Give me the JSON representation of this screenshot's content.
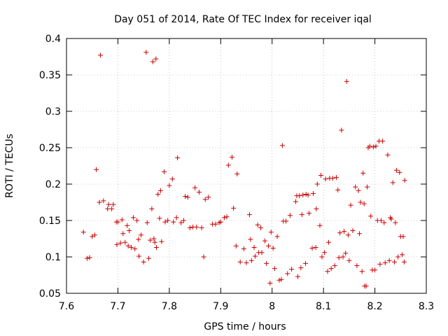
{
  "chart_data": {
    "type": "scatter",
    "title": "Day 051 of 2014, Rate Of TEC Index for receiver iqal",
    "xlabel": "GPS time / hours",
    "ylabel": "ROTI / TECUs",
    "xlim": [
      7.6,
      8.3
    ],
    "ylim": [
      0.05,
      0.4
    ],
    "xticks": [
      "7.6",
      "7.7",
      "7.8",
      "7.9",
      "8",
      "8.1",
      "8.2",
      "8.3"
    ],
    "yticks": [
      "0.05",
      "0.1",
      "0.15",
      "0.2",
      "0.25",
      "0.3",
      "0.35",
      "0.4"
    ],
    "marker": "+",
    "color": "#cc0000",
    "series": [
      {
        "name": "ROTI",
        "points": [
          [
            7.633,
            0.134
          ],
          [
            7.64,
            0.098
          ],
          [
            7.645,
            0.099
          ],
          [
            7.65,
            0.128
          ],
          [
            7.655,
            0.13
          ],
          [
            7.658,
            0.22
          ],
          [
            7.664,
            0.175
          ],
          [
            7.666,
            0.377
          ],
          [
            7.672,
            0.177
          ],
          [
            7.68,
            0.166
          ],
          [
            7.682,
            0.172
          ],
          [
            7.688,
            0.166
          ],
          [
            7.691,
            0.172
          ],
          [
            7.697,
            0.148
          ],
          [
            7.698,
            0.117
          ],
          [
            7.7,
            0.148
          ],
          [
            7.705,
            0.119
          ],
          [
            7.708,
            0.151
          ],
          [
            7.71,
            0.132
          ],
          [
            7.714,
            0.12
          ],
          [
            7.718,
            0.143
          ],
          [
            7.72,
            0.115
          ],
          [
            7.722,
            0.136
          ],
          [
            7.726,
            0.113
          ],
          [
            7.73,
            0.154
          ],
          [
            7.733,
            0.111
          ],
          [
            7.737,
            0.15
          ],
          [
            7.74,
            0.124
          ],
          [
            7.741,
            0.101
          ],
          [
            7.745,
            0.13
          ],
          [
            7.75,
            0.093
          ],
          [
            7.755,
            0.381
          ],
          [
            7.757,
            0.147
          ],
          [
            7.76,
            0.098
          ],
          [
            7.763,
            0.123
          ],
          [
            7.766,
            0.166
          ],
          [
            7.768,
            0.368
          ],
          [
            7.77,
            0.125
          ],
          [
            7.772,
            0.12
          ],
          [
            7.774,
            0.372
          ],
          [
            7.775,
            0.113
          ],
          [
            7.778,
            0.186
          ],
          [
            7.781,
            0.153
          ],
          [
            7.783,
            0.191
          ],
          [
            7.785,
            0.121
          ],
          [
            7.79,
            0.217
          ],
          [
            7.792,
            0.148
          ],
          [
            7.797,
            0.15
          ],
          [
            7.8,
            0.198
          ],
          [
            7.806,
            0.207
          ],
          [
            7.808,
            0.148
          ],
          [
            7.814,
            0.154
          ],
          [
            7.816,
            0.236
          ],
          [
            7.823,
            0.147
          ],
          [
            7.828,
            0.15
          ],
          [
            7.831,
            0.183
          ],
          [
            7.836,
            0.182
          ],
          [
            7.84,
            0.14
          ],
          [
            7.846,
            0.141
          ],
          [
            7.85,
            0.195
          ],
          [
            7.853,
            0.141
          ],
          [
            7.858,
            0.189
          ],
          [
            7.863,
            0.14
          ],
          [
            7.867,
            0.1
          ],
          [
            7.87,
            0.179
          ],
          [
            7.876,
            0.182
          ],
          [
            7.884,
            0.145
          ],
          [
            7.89,
            0.145
          ],
          [
            7.897,
            0.147
          ],
          [
            7.9,
            0.148
          ],
          [
            7.907,
            0.154
          ],
          [
            7.912,
            0.155
          ],
          [
            7.915,
            0.226
          ],
          [
            7.922,
            0.237
          ],
          [
            7.925,
            0.167
          ],
          [
            7.93,
            0.115
          ],
          [
            7.932,
            0.214
          ],
          [
            7.938,
            0.093
          ],
          [
            7.945,
            0.111
          ],
          [
            7.95,
            0.092
          ],
          [
            7.956,
            0.158
          ],
          [
            7.958,
            0.124
          ],
          [
            7.96,
            0.095
          ],
          [
            7.965,
            0.113
          ],
          [
            7.967,
            0.101
          ],
          [
            7.972,
            0.144
          ],
          [
            7.974,
            0.106
          ],
          [
            7.978,
            0.14
          ],
          [
            7.98,
            0.106
          ],
          [
            7.986,
            0.122
          ],
          [
            7.989,
            0.091
          ],
          [
            7.993,
            0.115
          ],
          [
            7.996,
            0.064
          ],
          [
            7.998,
            0.134
          ],
          [
            8.002,
            0.112
          ],
          [
            8.005,
            0.084
          ],
          [
            8.01,
            0.128
          ],
          [
            8.014,
            0.068
          ],
          [
            8.018,
            0.069
          ],
          [
            8.02,
            0.253
          ],
          [
            8.022,
            0.149
          ],
          [
            8.027,
            0.149
          ],
          [
            8.03,
            0.077
          ],
          [
            8.035,
            0.157
          ],
          [
            8.038,
            0.083
          ],
          [
            8.046,
            0.176
          ],
          [
            8.048,
            0.184
          ],
          [
            8.05,
            0.073
          ],
          [
            8.053,
            0.184
          ],
          [
            8.056,
            0.085
          ],
          [
            8.058,
            0.158
          ],
          [
            8.06,
            0.185
          ],
          [
            8.065,
            0.091
          ],
          [
            8.066,
            0.186
          ],
          [
            8.07,
            0.185
          ],
          [
            8.072,
            0.16
          ],
          [
            8.078,
            0.112
          ],
          [
            8.08,
            0.187
          ],
          [
            8.085,
            0.113
          ],
          [
            8.086,
            0.166
          ],
          [
            8.088,
            0.2
          ],
          [
            8.093,
            0.143
          ],
          [
            8.095,
            0.212
          ],
          [
            8.097,
            0.1
          ],
          [
            8.102,
            0.106
          ],
          [
            8.104,
            0.207
          ],
          [
            8.108,
            0.08
          ],
          [
            8.11,
            0.12
          ],
          [
            8.112,
            0.208
          ],
          [
            8.115,
            0.084
          ],
          [
            8.118,
            0.208
          ],
          [
            8.122,
            0.088
          ],
          [
            8.125,
            0.209
          ],
          [
            8.128,
            0.192
          ],
          [
            8.13,
            0.099
          ],
          [
            8.132,
            0.133
          ],
          [
            8.135,
            0.274
          ],
          [
            8.138,
            0.1
          ],
          [
            8.14,
            0.135
          ],
          [
            8.143,
            0.105
          ],
          [
            8.145,
            0.341
          ],
          [
            8.148,
            0.13
          ],
          [
            8.15,
            0.095
          ],
          [
            8.153,
            0.171
          ],
          [
            8.157,
            0.136
          ],
          [
            8.162,
            0.196
          ],
          [
            8.165,
            0.088
          ],
          [
            8.168,
            0.191
          ],
          [
            8.17,
            0.132
          ],
          [
            8.172,
            0.175
          ],
          [
            8.175,
            0.08
          ],
          [
            8.177,
            0.215
          ],
          [
            8.179,
            0.173
          ],
          [
            8.18,
            0.06
          ],
          [
            8.183,
            0.06
          ],
          [
            8.185,
            0.196
          ],
          [
            8.187,
            0.25
          ],
          [
            8.19,
            0.252
          ],
          [
            8.192,
            0.156
          ],
          [
            8.195,
            0.082
          ],
          [
            8.197,
            0.251
          ],
          [
            8.2,
            0.082
          ],
          [
            8.202,
            0.252
          ],
          [
            8.205,
            0.15
          ],
          [
            8.208,
            0.259
          ],
          [
            8.21,
            0.09
          ],
          [
            8.212,
            0.15
          ],
          [
            8.215,
            0.259
          ],
          [
            8.218,
            0.147
          ],
          [
            8.22,
            0.092
          ],
          [
            8.225,
            0.24
          ],
          [
            8.228,
            0.095
          ],
          [
            8.23,
            0.154
          ],
          [
            8.232,
            0.152
          ],
          [
            8.235,
            0.202
          ],
          [
            8.238,
            0.093
          ],
          [
            8.24,
            0.147
          ],
          [
            8.242,
            0.219
          ],
          [
            8.245,
            0.1
          ],
          [
            8.248,
            0.216
          ],
          [
            8.25,
            0.128
          ],
          [
            8.253,
            0.103
          ],
          [
            8.255,
            0.128
          ],
          [
            8.257,
            0.093
          ],
          [
            8.258,
            0.205
          ]
        ]
      }
    ]
  }
}
